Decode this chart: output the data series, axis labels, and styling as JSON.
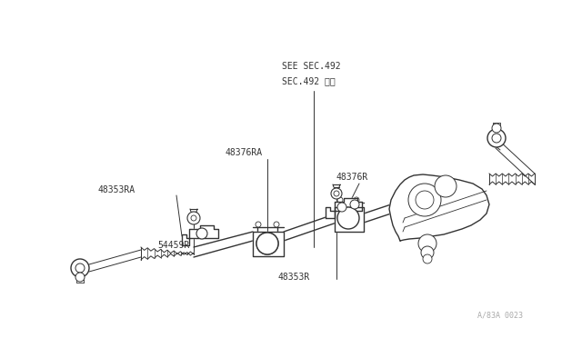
{
  "bg_color": "#ffffff",
  "line_color": "#333333",
  "text_color": "#333333",
  "figsize": [
    6.4,
    3.72
  ],
  "dpi": 100,
  "labels": {
    "see_sec": "SEE SEC.492",
    "sec_jp": "SEC.492 参照",
    "p48376RA": "48376RA",
    "p48353RA": "48353RA",
    "p48376R": "48376R",
    "p54459R": "54459R",
    "p48353R": "48353R",
    "watermark": "A/83A 0023"
  },
  "font_size_label": 7.0,
  "font_size_watermark": 6.0
}
